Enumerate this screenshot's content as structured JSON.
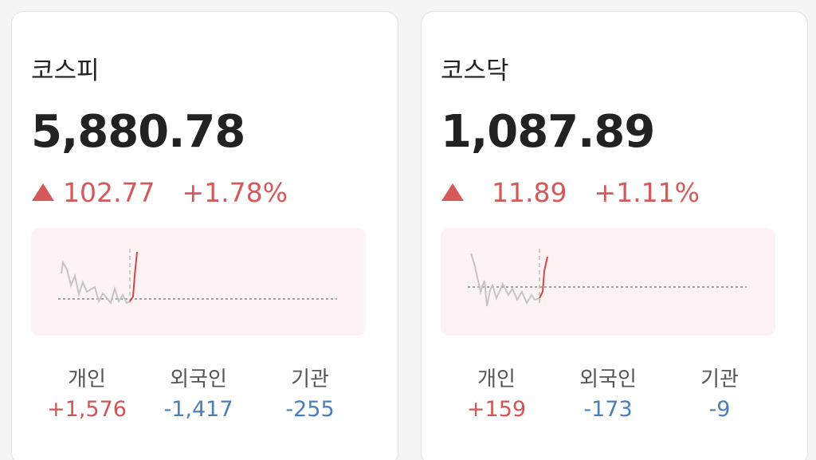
{
  "cards": [
    {
      "title": "코스피",
      "value": "5,880.78",
      "change": "102.77",
      "change_percent": "+1.78%",
      "investors": [
        {
          "label": "개인",
          "value": "+1,576"
        },
        {
          "label": "외국인",
          "value": "-1,417"
        },
        {
          "label": "기관",
          "value": "-255"
        }
      ]
    },
    {
      "title": "코스닥",
      "value": "1,087.89",
      "change": "11.89",
      "change_percent": "+1.11%",
      "investors": [
        {
          "label": "개인",
          "value": "+159"
        },
        {
          "label": "외국인",
          "value": "-173"
        },
        {
          "label": "기관",
          "value": "-9"
        }
      ]
    }
  ]
}
